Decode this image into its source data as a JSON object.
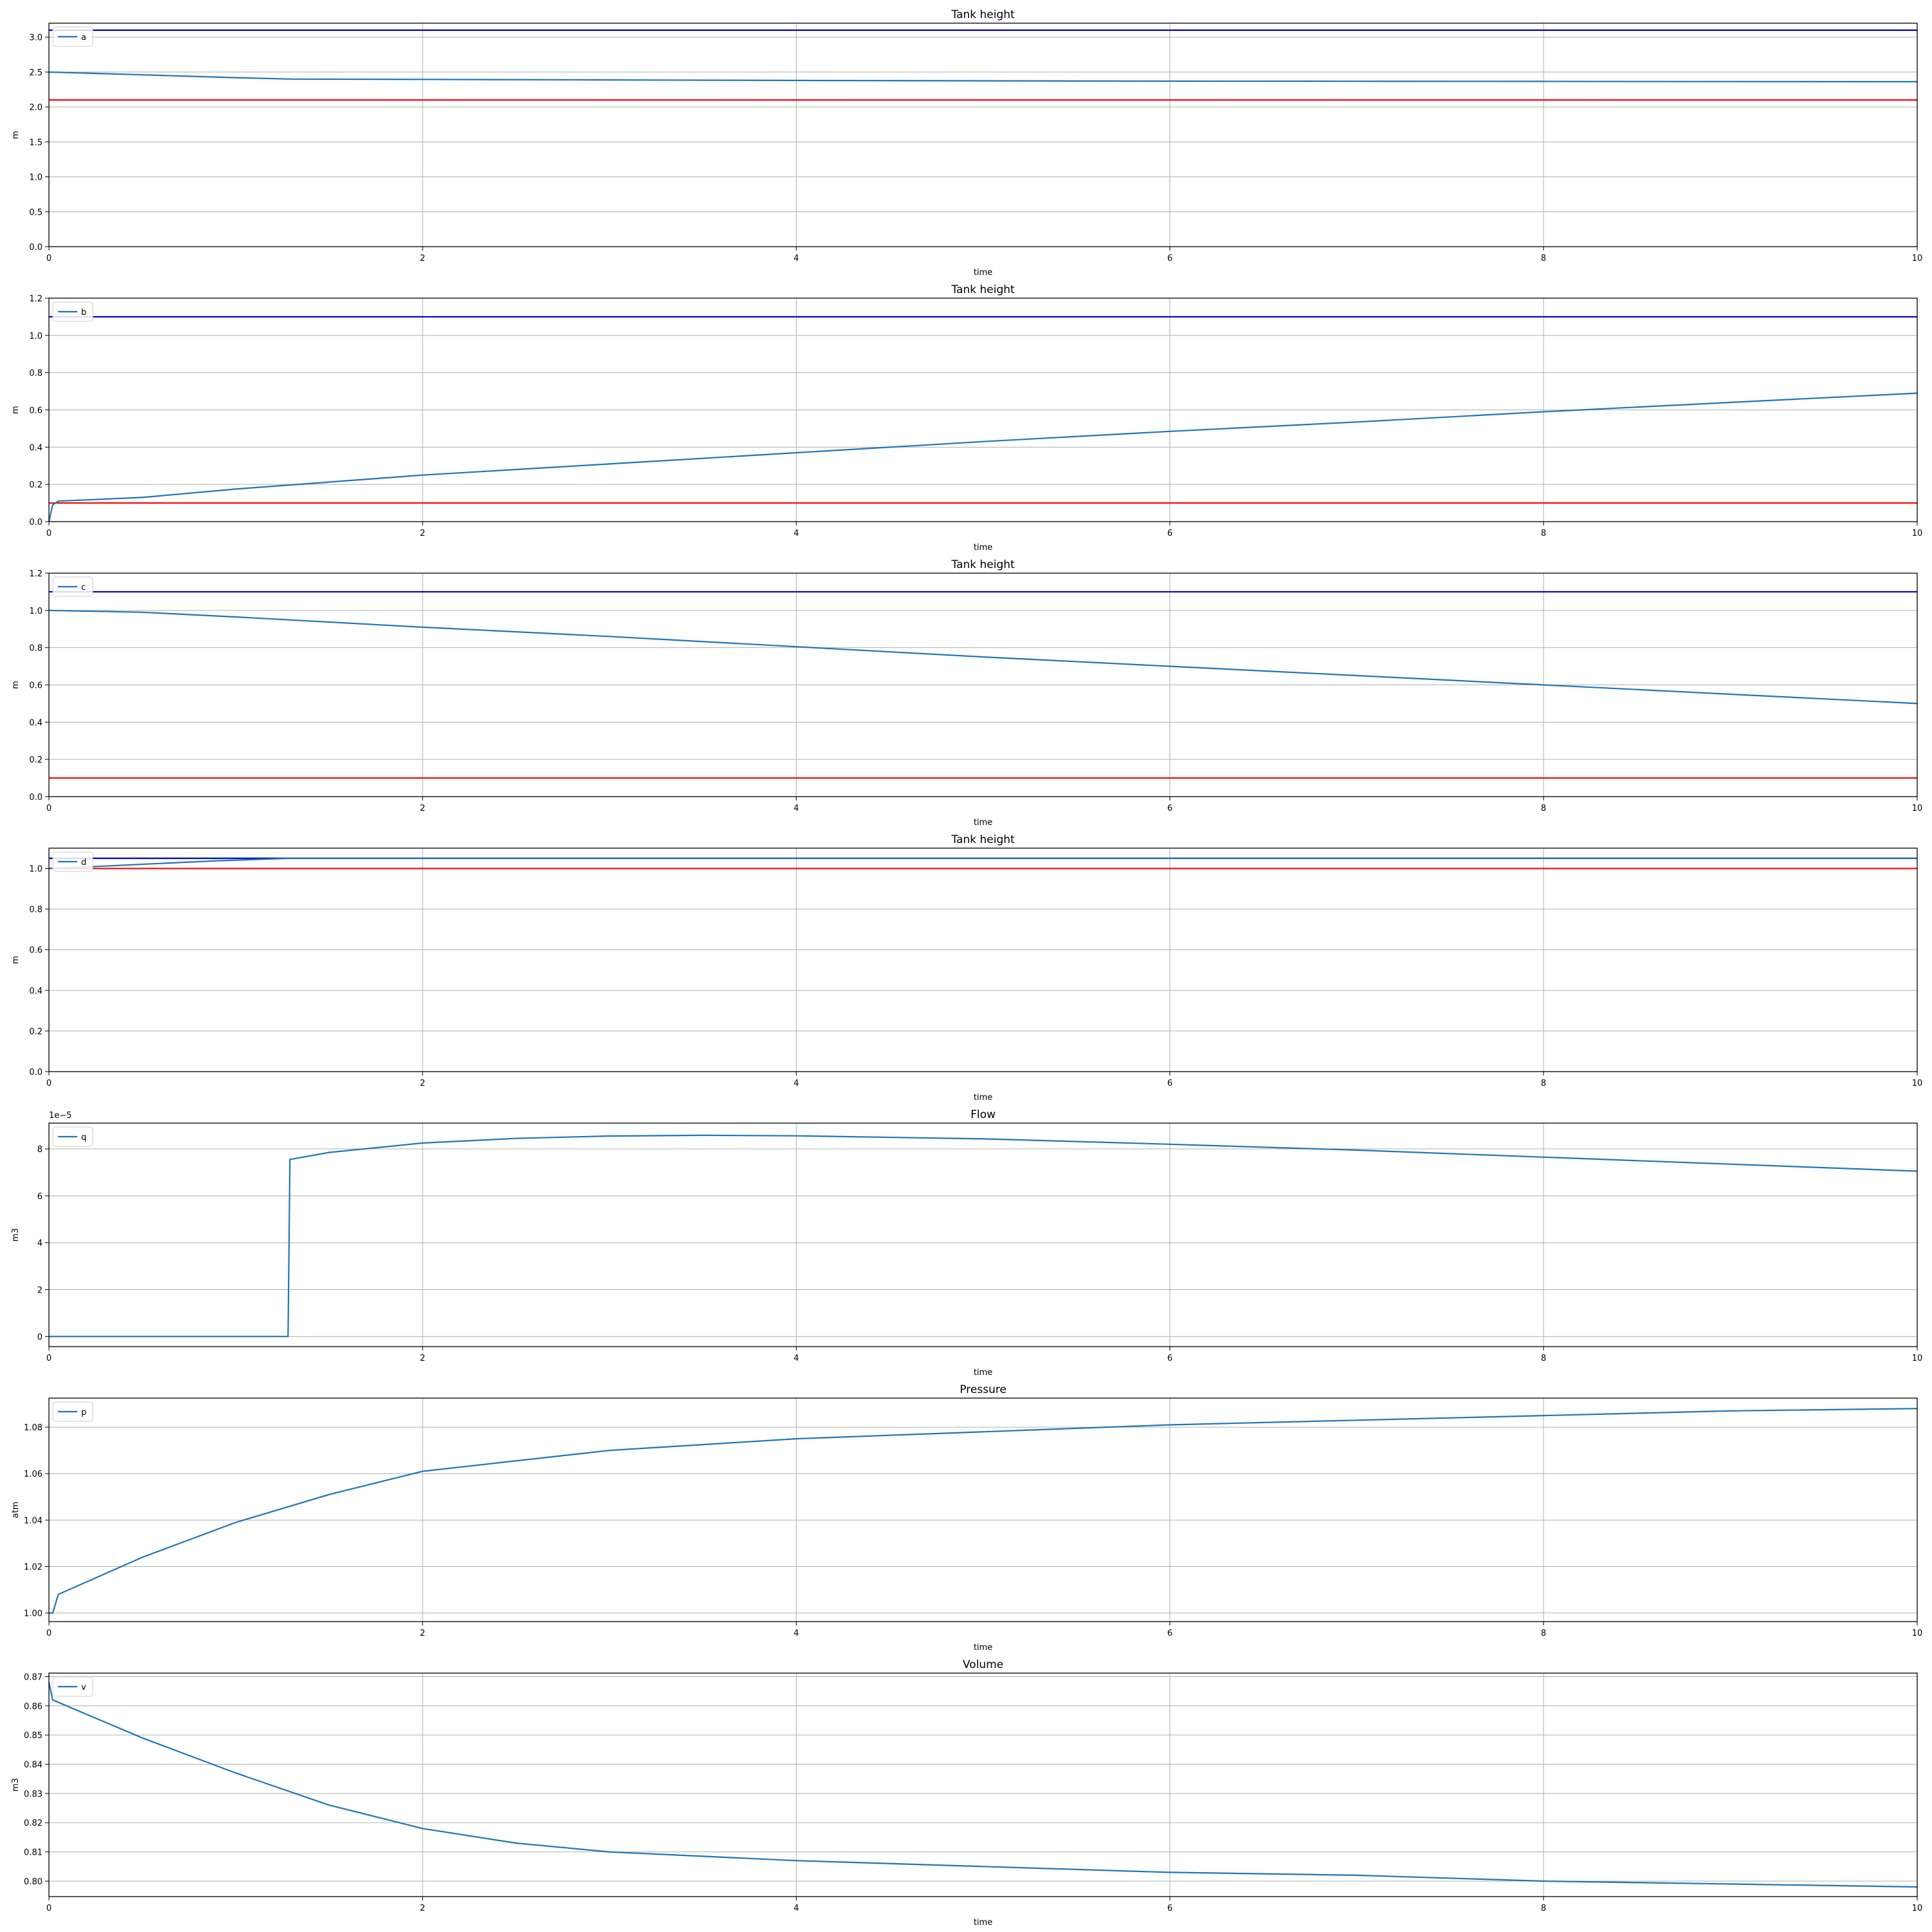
{
  "chart_data": [
    {
      "type": "line",
      "title": "Tank height",
      "xlabel": "time",
      "ylabel": "m",
      "xlim": [
        0,
        10
      ],
      "ylim": [
        0,
        3.2
      ],
      "xticks": [
        "0",
        "2",
        "4",
        "6",
        "8",
        "10"
      ],
      "yticks": [
        "0.0",
        "0.5",
        "1.0",
        "1.5",
        "2.0",
        "2.5",
        "3.0"
      ],
      "grid": true,
      "legend_position": "top-left",
      "series": [
        {
          "name": "a",
          "color": "#1f77b4",
          "x": [
            0,
            0.5,
            1.0,
            1.3,
            2,
            3,
            4,
            5,
            6,
            7,
            8,
            9,
            10
          ],
          "y": [
            2.5,
            2.46,
            2.42,
            2.4,
            2.395,
            2.388,
            2.38,
            2.375,
            2.37,
            2.368,
            2.366,
            2.364,
            2.362
          ]
        }
      ],
      "hlines": [
        {
          "y": 3.1,
          "color": "#0000cc"
        },
        {
          "y": 2.1,
          "color": "#ff0000"
        }
      ]
    },
    {
      "type": "line",
      "title": "Tank height",
      "xlabel": "time",
      "ylabel": "m",
      "xlim": [
        0,
        10
      ],
      "ylim": [
        0,
        1.2
      ],
      "xticks": [
        "0",
        "2",
        "4",
        "6",
        "8",
        "10"
      ],
      "yticks": [
        "0.0",
        "0.2",
        "0.4",
        "0.6",
        "0.8",
        "1.0",
        "1.2"
      ],
      "grid": true,
      "legend_position": "top-left",
      "series": [
        {
          "name": "b",
          "color": "#1f77b4",
          "x": [
            0,
            0.02,
            0.05,
            0.5,
            1,
            2,
            3,
            4,
            5,
            6,
            7,
            8,
            9,
            10
          ],
          "y": [
            0.0,
            0.09,
            0.11,
            0.13,
            0.175,
            0.25,
            0.31,
            0.37,
            0.43,
            0.485,
            0.535,
            0.59,
            0.64,
            0.69
          ]
        }
      ],
      "hlines": [
        {
          "y": 1.1,
          "color": "#0000cc"
        },
        {
          "y": 0.1,
          "color": "#ff0000"
        }
      ]
    },
    {
      "type": "line",
      "title": "Tank height",
      "xlabel": "time",
      "ylabel": "m",
      "xlim": [
        0,
        10
      ],
      "ylim": [
        0,
        1.2
      ],
      "xticks": [
        "0",
        "2",
        "4",
        "6",
        "8",
        "10"
      ],
      "yticks": [
        "0.0",
        "0.2",
        "0.4",
        "0.6",
        "0.8",
        "1.0",
        "1.2"
      ],
      "grid": true,
      "legend_position": "top-left",
      "series": [
        {
          "name": "c",
          "color": "#1f77b4",
          "x": [
            0,
            0.5,
            1,
            2,
            3,
            4,
            5,
            6,
            7,
            8,
            9,
            10
          ],
          "y": [
            1.0,
            0.99,
            0.965,
            0.91,
            0.86,
            0.805,
            0.75,
            0.7,
            0.65,
            0.6,
            0.55,
            0.5
          ]
        }
      ],
      "hlines": [
        {
          "y": 1.1,
          "color": "#0000cc"
        },
        {
          "y": 0.1,
          "color": "#ff0000"
        }
      ]
    },
    {
      "type": "line",
      "title": "Tank height",
      "xlabel": "time",
      "ylabel": "m",
      "xlim": [
        0,
        10
      ],
      "ylim": [
        0,
        1.1
      ],
      "xticks": [
        "0",
        "2",
        "4",
        "6",
        "8",
        "10"
      ],
      "yticks": [
        "0.0",
        "0.2",
        "0.4",
        "0.6",
        "0.8",
        "1.0"
      ],
      "grid": true,
      "legend_position": "top-left",
      "series": [
        {
          "name": "d",
          "color": "#1f77b4",
          "x": [
            0,
            0.3,
            0.6,
            0.9,
            1.29,
            2,
            4,
            6,
            8,
            10
          ],
          "y": [
            1.0,
            1.012,
            1.025,
            1.038,
            1.05,
            1.05,
            1.05,
            1.05,
            1.05,
            1.05
          ]
        }
      ],
      "hlines": [
        {
          "y": 1.05,
          "color": "#0000cc"
        },
        {
          "y": 1.0,
          "color": "#ff0000"
        }
      ]
    },
    {
      "type": "line",
      "title": "Flow",
      "xlabel": "time",
      "ylabel": "m3",
      "offset_text": "1e−5",
      "xlim": [
        0,
        10
      ],
      "ylim": [
        -0.43,
        9.1
      ],
      "xticks": [
        "0",
        "2",
        "4",
        "6",
        "8",
        "10"
      ],
      "yticks": [
        "0",
        "2",
        "4",
        "6",
        "8"
      ],
      "grid": true,
      "legend_position": "top-left",
      "series": [
        {
          "name": "q",
          "color": "#1f77b4",
          "x": [
            0,
            1.28,
            1.29,
            1.5,
            2,
            2.5,
            3,
            3.5,
            4,
            5,
            6,
            7,
            8,
            9,
            10
          ],
          "y": [
            0,
            0,
            7.55,
            7.85,
            8.25,
            8.45,
            8.55,
            8.58,
            8.56,
            8.43,
            8.2,
            7.95,
            7.65,
            7.35,
            7.05
          ]
        }
      ]
    },
    {
      "type": "line",
      "title": "Pressure",
      "xlabel": "time",
      "ylabel": "atm",
      "xlim": [
        0,
        10
      ],
      "ylim": [
        0.9963,
        1.0925
      ],
      "xticks": [
        "0",
        "2",
        "4",
        "6",
        "8",
        "10"
      ],
      "yticks": [
        "1.00",
        "1.02",
        "1.04",
        "1.06",
        "1.08"
      ],
      "grid": true,
      "legend_position": "top-left",
      "series": [
        {
          "name": "p",
          "color": "#1f77b4",
          "x": [
            0,
            0.02,
            0.05,
            0.5,
            1,
            1.5,
            2,
            3,
            4,
            5,
            6,
            7,
            8,
            9,
            10
          ],
          "y": [
            1.0,
            1.0,
            1.008,
            1.024,
            1.039,
            1.051,
            1.061,
            1.07,
            1.075,
            1.078,
            1.081,
            1.083,
            1.085,
            1.087,
            1.088
          ]
        }
      ]
    },
    {
      "type": "line",
      "title": "Volume",
      "xlabel": "time",
      "ylabel": "m3",
      "xlim": [
        0,
        10
      ],
      "ylim": [
        0.7947,
        0.8712
      ],
      "xticks": [
        "0",
        "2",
        "4",
        "6",
        "8",
        "10"
      ],
      "yticks": [
        "0.80",
        "0.81",
        "0.82",
        "0.83",
        "0.84",
        "0.85",
        "0.86",
        "0.87"
      ],
      "grid": true,
      "legend_position": "top-left",
      "series": [
        {
          "name": "v",
          "color": "#1f77b4",
          "x": [
            0,
            0.02,
            0.5,
            1,
            1.5,
            2,
            2.5,
            3,
            4,
            5,
            6,
            7,
            8,
            9,
            10
          ],
          "y": [
            0.868,
            0.862,
            0.849,
            0.837,
            0.826,
            0.818,
            0.813,
            0.81,
            0.807,
            0.805,
            0.803,
            0.802,
            0.8,
            0.799,
            0.798
          ]
        }
      ]
    }
  ]
}
